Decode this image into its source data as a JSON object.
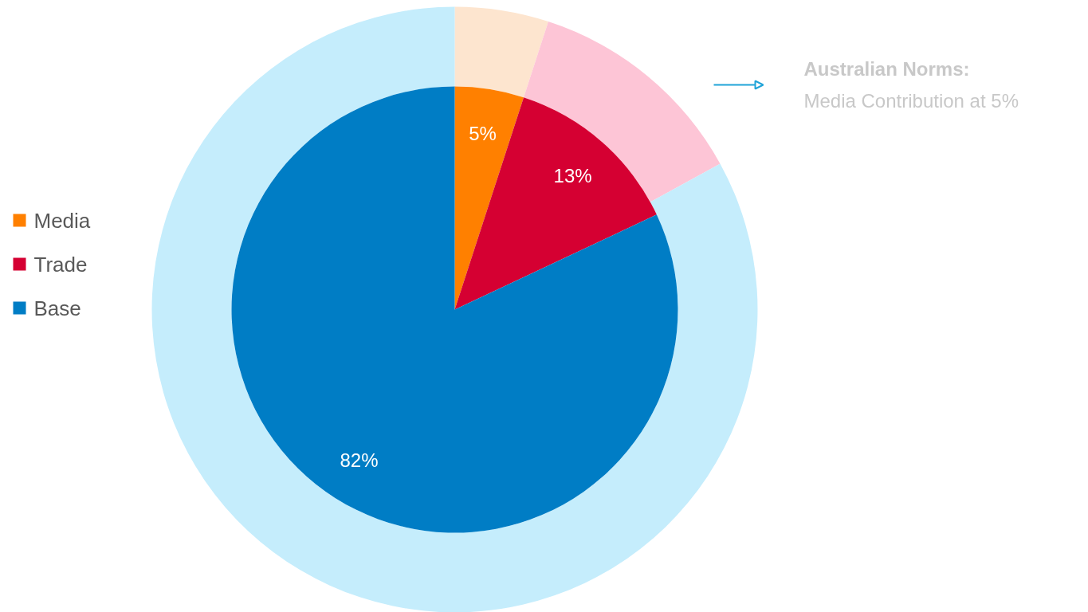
{
  "chart_data": {
    "type": "donut",
    "categories": [
      "Media",
      "Trade",
      "Base"
    ],
    "series": [
      {
        "type": "pie",
        "values": [
          5,
          13,
          82
        ],
        "colors": [
          "#ff8000",
          "#d50032",
          "#007dc5"
        ],
        "value_labels": [
          "5%",
          "13%",
          "82%"
        ]
      },
      {
        "values": [
          5,
          12,
          83
        ],
        "colors": [
          "#fde5cf",
          "#fdc5d6",
          "#c5edfc"
        ]
      }
    ],
    "legend": "left",
    "annotations": [
      "Australian Norms:",
      "Media Contribution at 5%"
    ]
  }
}
